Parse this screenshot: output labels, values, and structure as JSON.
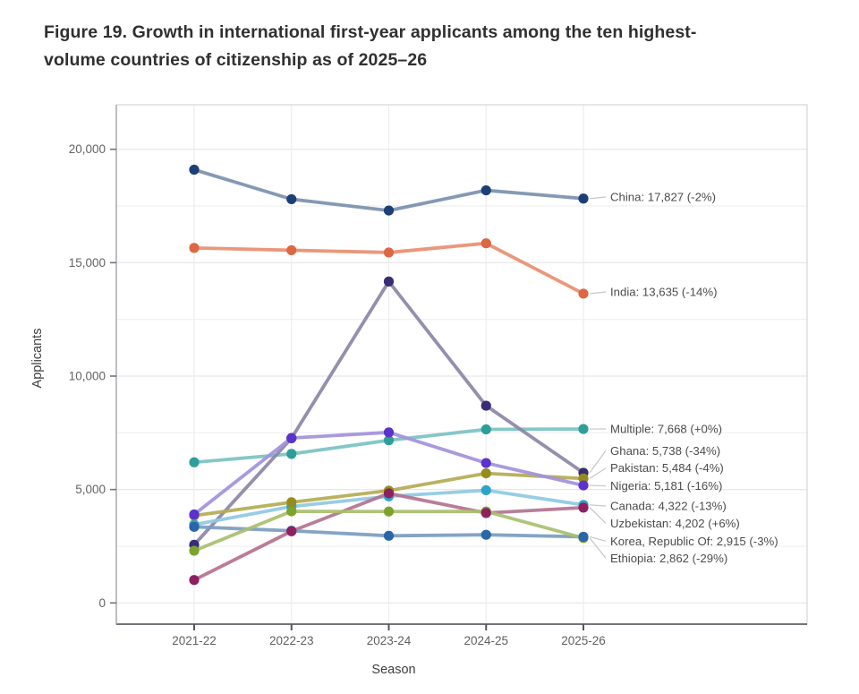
{
  "figure": {
    "title_lines": [
      "Figure 19. Growth in international first-year applicants among the ten highest-",
      "volume countries of citizenship as of 2025–26"
    ]
  },
  "chart_data": {
    "type": "line",
    "title": "Figure 19. Growth in international first-year applicants among the ten highest-volume countries of citizenship as of 2025–26",
    "xlabel": "Season",
    "ylabel": "Applicants",
    "categories": [
      "2021-22",
      "2022-23",
      "2023-24",
      "2024-25",
      "2025-26"
    ],
    "y_ticks": {
      "values": [
        0,
        5000,
        10000,
        15000,
        20000
      ],
      "labels": [
        "0",
        "5,000",
        "10,000",
        "15,000",
        "20,000"
      ]
    },
    "minor_grid_step": 2500,
    "ylim": [
      -900,
      21900
    ],
    "grid": true,
    "legend_position": "end-labels-right",
    "series": [
      {
        "name": "China",
        "values": [
          19100,
          17800,
          17300,
          18190,
          17827
        ],
        "end_label": "China: 17,827 (-2%)",
        "line_color": "#7b90ac",
        "dot_color": "#1d3f77"
      },
      {
        "name": "India",
        "values": [
          15650,
          15550,
          15450,
          15855,
          13635
        ],
        "end_label": "India: 13,635 (-14%)",
        "line_color": "#e98e70",
        "dot_color": "#dc6742"
      },
      {
        "name": "Multiple",
        "values": [
          6200,
          6570,
          7170,
          7650,
          7668
        ],
        "end_label": "Multiple: 7,668 (+0%)",
        "line_color": "#7bc2c2",
        "dot_color": "#2d9e99"
      },
      {
        "name": "Ghana",
        "values": [
          2565,
          7260,
          14170,
          8694,
          5738
        ],
        "end_label": "Ghana: 5,738 (-34%)",
        "line_color": "#8c84a5",
        "dot_color": "#372e75"
      },
      {
        "name": "Pakistan",
        "values": [
          3850,
          4440,
          4950,
          5713,
          5484
        ],
        "end_label": "Pakistan: 5,484 (-4%)",
        "line_color": "#b3ab52",
        "dot_color": "#958c1e"
      },
      {
        "name": "Nigeria",
        "values": [
          3900,
          7270,
          7520,
          6168,
          5181
        ],
        "end_label": "Nigeria: 5,181 (-16%)",
        "line_color": "#a291dc",
        "dot_color": "#5b32cc"
      },
      {
        "name": "Canada",
        "values": [
          3450,
          4250,
          4700,
          4968,
          4322
        ],
        "end_label": "Canada: 4,322 (-13%)",
        "line_color": "#8fc9e2",
        "dot_color": "#2fa3c9"
      },
      {
        "name": "Uzbekistan",
        "values": [
          1012,
          3160,
          4830,
          3964,
          4202
        ],
        "end_label": "Uzbekistan: 4,202 (+6%)",
        "line_color": "#b2738f",
        "dot_color": "#8e2060"
      },
      {
        "name": "Korea, Republic Of",
        "values": [
          3355,
          3180,
          2960,
          3005,
          2915
        ],
        "end_label": "Korea, Republic Of: 2,915 (-3%)",
        "line_color": "#7b9cc0",
        "dot_color": "#2766a8"
      },
      {
        "name": "Ethiopia",
        "values": [
          2300,
          4040,
          4030,
          4031,
          2862
        ],
        "end_label": "Ethiopia: 2,862 (-29%)",
        "line_color": "#a8bf6e",
        "dot_color": "#7da32e"
      }
    ]
  }
}
